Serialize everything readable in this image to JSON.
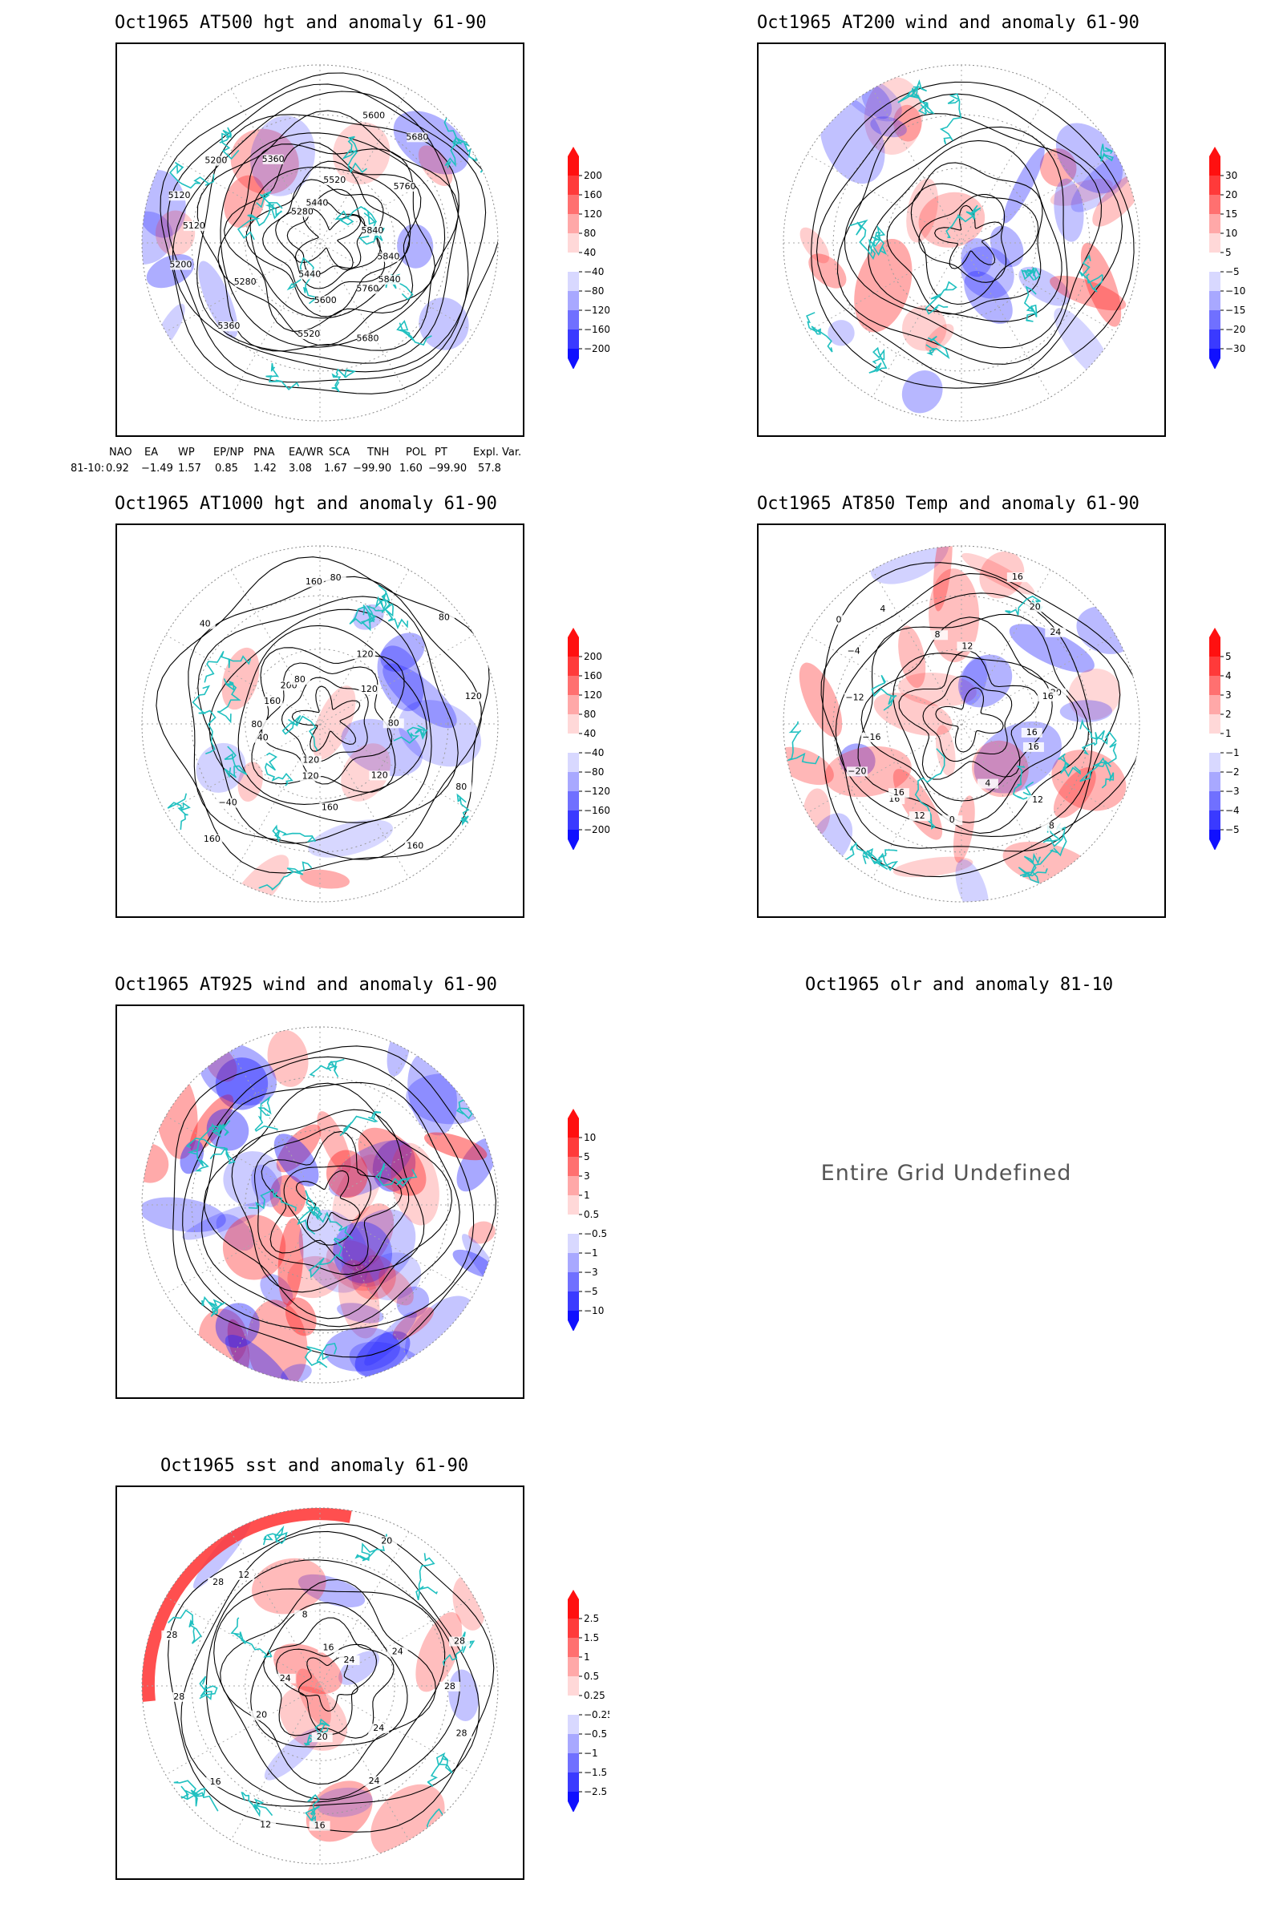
{
  "panels": [
    {
      "id": "p500",
      "title": "Oct1965 AT500 hgt and anomaly 61-90",
      "colorbar": [
        "200",
        "160",
        "120",
        "80",
        "40",
        "−40",
        "−80",
        "−120",
        "−160",
        "−200"
      ],
      "contour_labels": [
        "5840",
        "5840",
        "5760",
        "5680",
        "5600",
        "5520",
        "5440",
        "5360",
        "5280",
        "5200",
        "5120",
        "5120",
        "5200",
        "5280",
        "5360",
        "5440",
        "5520",
        "5600",
        "5680",
        "5760",
        "5840"
      ]
    },
    {
      "id": "p200",
      "title": "Oct1965 AT200 wind and anomaly 61-90",
      "colorbar": [
        "30",
        "20",
        "15",
        "10",
        "5",
        "−5",
        "−10",
        "−15",
        "−20",
        "−30"
      ],
      "contour_labels": []
    },
    {
      "id": "p1000",
      "title": "Oct1965 AT1000 hgt and anomaly 61-90",
      "colorbar": [
        "200",
        "160",
        "120",
        "80",
        "40",
        "−40",
        "−80",
        "−120",
        "−160",
        "−200"
      ],
      "contour_labels": [
        "80",
        "80",
        "120",
        "160",
        "160",
        "120",
        "120",
        "160",
        "−40",
        "40",
        "80",
        "160",
        "40",
        "200",
        "80",
        "160",
        "80",
        "120",
        "80",
        "120",
        "120"
      ]
    },
    {
      "id": "p850",
      "title": "Oct1965 AT850 Temp and anomaly 61-90",
      "colorbar": [
        "5",
        "4",
        "3",
        "2",
        "1",
        "−1",
        "−2",
        "−3",
        "−4",
        "−5"
      ],
      "contour_labels": [
        "16",
        "16",
        "12",
        "8",
        "4",
        "0",
        "12",
        "16",
        "16",
        "−20",
        "−16",
        "−12",
        "−4",
        "0",
        "4",
        "8",
        "12",
        "16",
        "20",
        "24",
        "20",
        "16"
      ]
    },
    {
      "id": "p925",
      "title": "Oct1965 AT925 wind and anomaly 61-90",
      "colorbar": [
        "10",
        "5",
        "3",
        "1",
        "0.5",
        "−0.5",
        "−1",
        "−3",
        "−5",
        "−10"
      ],
      "contour_labels": []
    },
    {
      "id": "polr",
      "title": "Oct1965 olr and anomaly 81-10",
      "message": "Entire Grid Undefined"
    },
    {
      "id": "psst",
      "title": "Oct1965 sst and anomaly 61-90",
      "colorbar": [
        "2.5",
        "1.5",
        "1",
        "0.5",
        "0.25",
        "−0.25",
        "−0.5",
        "−1",
        "−1.5",
        "−2.5"
      ],
      "contour_labels": [
        "28",
        "28",
        "24",
        "24",
        "20",
        "16",
        "12",
        "16",
        "20",
        "28",
        "24",
        "28",
        "28",
        "12",
        "8",
        "16",
        "20",
        "24",
        "24",
        "28"
      ]
    }
  ],
  "indices": {
    "headers": [
      "NAO",
      "EA",
      "WP",
      "EP/NP",
      "PNA",
      "EA/WR",
      "SCA",
      "TNH",
      "POL",
      "PT",
      "Expl. Var."
    ],
    "row_label": "81-10:",
    "values": [
      "0.92",
      "−1.49",
      "1.57",
      "0.85",
      "1.42",
      "3.08",
      "1.67",
      "−99.90",
      "1.60",
      "−99.90",
      "57.8"
    ]
  },
  "colors": {
    "positive": "#ff2020",
    "negative": "#2020ff",
    "coastline": "#20c0c0",
    "contour": "#000000"
  }
}
